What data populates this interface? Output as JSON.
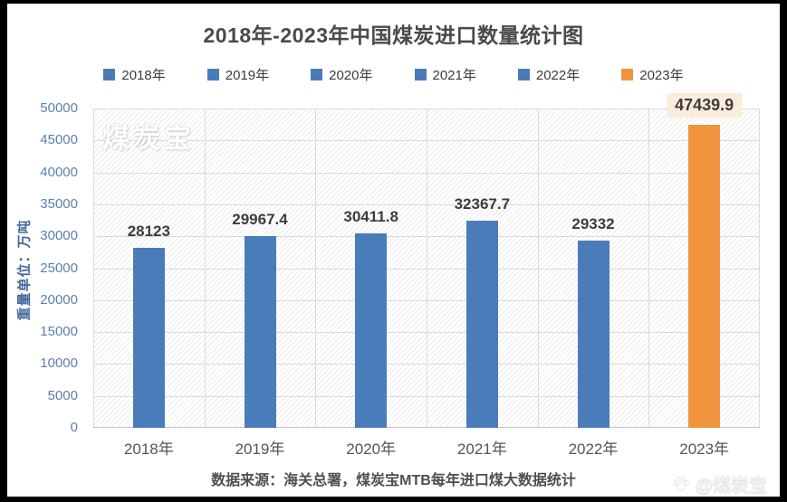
{
  "chart_data": {
    "type": "bar",
    "title": "2018年-2023年中国煤炭进口数量统计图",
    "categories": [
      "2018年",
      "2019年",
      "2020年",
      "2021年",
      "2022年",
      "2023年"
    ],
    "values": [
      28123,
      29967.4,
      30411.8,
      32367.7,
      29332,
      47439.9
    ],
    "data_labels": [
      "28123",
      "29967.4",
      "30411.8",
      "32367.7",
      "29332",
      "47439.9"
    ],
    "bar_colors": [
      "#4a7cba",
      "#4a7cba",
      "#4a7cba",
      "#4a7cba",
      "#4a7cba",
      "#f0943e"
    ],
    "label_highlight": [
      false,
      false,
      false,
      false,
      false,
      true
    ],
    "highlight_label_bg": "#fcecdb",
    "ylabel": "重量单位：万吨",
    "ylim": [
      0,
      50000
    ],
    "ytick_step": 5000,
    "grid": true,
    "legend_position": "top",
    "legend": [
      {
        "label": "2018年",
        "color": "#4a7cba"
      },
      {
        "label": "2019年",
        "color": "#4a7cba"
      },
      {
        "label": "2020年",
        "color": "#4a7cba"
      },
      {
        "label": "2021年",
        "color": "#4a7cba"
      },
      {
        "label": "2022年",
        "color": "#4a7cba"
      },
      {
        "label": "2023年",
        "color": "#f0943e"
      }
    ],
    "colors": {
      "bar_blue": "#4a7cba",
      "bar_orange": "#f0943e",
      "axis_text": "#5d7fae"
    }
  },
  "footer": {
    "source_text": "数据来源：海关总署，煤炭宝MTB每年进口煤大数据统计"
  },
  "watermarks": {
    "plot_watermark": "煤炭宝",
    "corner_watermark": "@煤炭宝"
  }
}
